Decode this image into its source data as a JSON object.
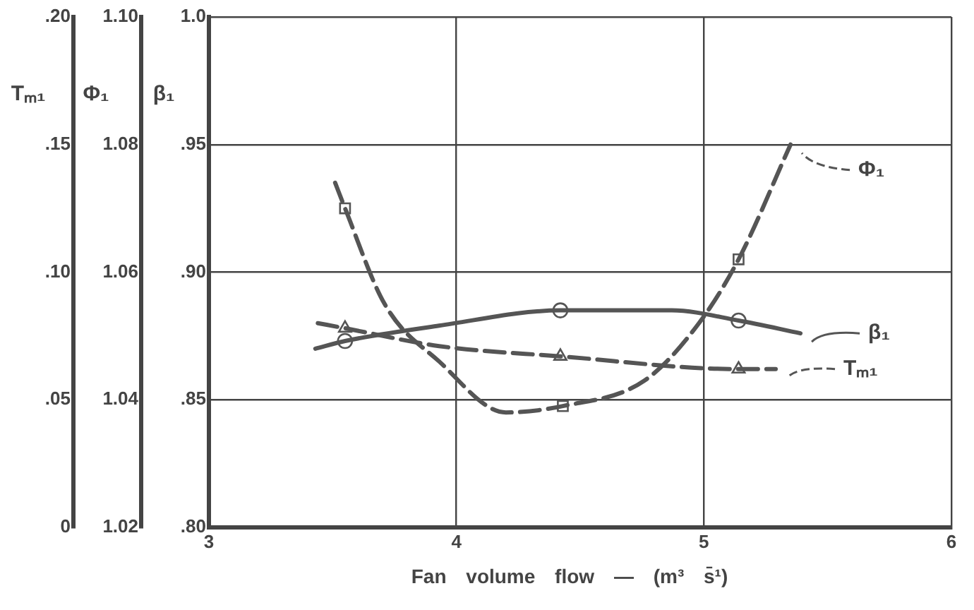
{
  "chart_data": {
    "type": "line",
    "xlabel": "Fan volume flow — (m³ s̄¹)",
    "ylabel": "β₁",
    "y2label": "Φ₁",
    "y3label": "Tₘ₁",
    "xlim": [
      3,
      6
    ],
    "xticks": [
      3,
      4,
      5,
      6
    ],
    "ylim": [
      0.8,
      1.0
    ],
    "yticks": [
      {
        "value": 0.8,
        "label": ".80"
      },
      {
        "value": 0.85,
        "label": ".85"
      },
      {
        "value": 0.9,
        "label": ".90"
      },
      {
        "value": 0.95,
        "label": ".95"
      },
      {
        "value": 1.0,
        "label": "1.0"
      }
    ],
    "y2lim": [
      1.02,
      1.1
    ],
    "y2ticks": [
      {
        "value": 1.02,
        "label": "1.02"
      },
      {
        "value": 1.04,
        "label": "1.04"
      },
      {
        "value": 1.06,
        "label": "1.06"
      },
      {
        "value": 1.08,
        "label": "1.08"
      },
      {
        "value": 1.1,
        "label": "1.10"
      }
    ],
    "y3lim": [
      0,
      0.2
    ],
    "y3ticks": [
      0,
      {
        "value": 0.05,
        "label": ".05"
      },
      {
        "value": 0.1,
        "label": ".10"
      },
      {
        "value": 0.15,
        "label": ".15"
      },
      {
        "value": 0.2,
        "label": ".20"
      }
    ],
    "grid": true,
    "legend": "right",
    "series": [
      {
        "name": "Φ₁",
        "axis": "y2",
        "color": "#555555",
        "line_style": "dashed",
        "x": [
          3.51,
          3.55,
          3.71,
          3.93,
          4.2,
          4.43,
          4.76,
          4.98,
          5.14,
          5.35
        ],
        "values": [
          1.074,
          1.07,
          1.055,
          1.046,
          1.038,
          1.039,
          1.043,
          1.052,
          1.062,
          1.08
        ]
      },
      {
        "name": "β₁",
        "color": "#555555",
        "line_style": "solid",
        "x": [
          3.43,
          3.55,
          3.93,
          4.42,
          4.87,
          5.14,
          5.39
        ],
        "values": [
          0.87,
          0.873,
          0.879,
          0.885,
          0.885,
          0.881,
          0.876
        ]
      },
      {
        "name": "Tₘ₁",
        "axis": "y3",
        "color": "#555555",
        "line_style": "dashed",
        "x": [
          3.44,
          3.55,
          3.93,
          4.42,
          5.14,
          5.29
        ],
        "values": [
          0.08,
          0.078,
          0.071,
          0.067,
          0.062,
          0.062
        ]
      },
      {
        "type": "scatter",
        "axis": "y2",
        "color": "#555555",
        "marker": "square",
        "x": [
          3.55,
          4.43,
          5.14
        ],
        "values": [
          1.07,
          1.039,
          1.062
        ]
      },
      {
        "type": "scatter",
        "color": "#555555",
        "marker": "circle",
        "x": [
          3.55,
          4.42,
          5.14
        ],
        "values": [
          0.873,
          0.885,
          0.881
        ]
      },
      {
        "type": "scatter",
        "axis": "y3",
        "color": "#555555",
        "marker": "triangle",
        "x": [
          3.55,
          4.42,
          5.14
        ],
        "values": [
          0.078,
          0.067,
          0.062
        ]
      }
    ]
  }
}
